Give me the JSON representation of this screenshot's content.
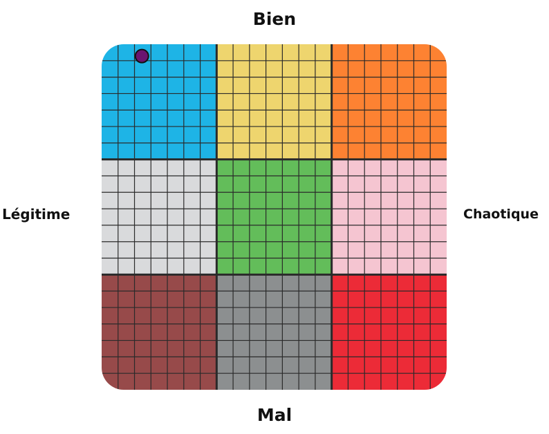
{
  "axes": {
    "top": "Bien",
    "bottom": "Mal",
    "left": "Légitime",
    "right": "Chaotique"
  },
  "grid": {
    "blocks_per_side": 3,
    "subdivisions_per_block": 7,
    "block_colors": [
      [
        "#1eb4e6",
        "#eed56e",
        "#fd8232"
      ],
      [
        "#d9dadc",
        "#63bd5a",
        "#f5c5d1"
      ],
      [
        "#974a4a",
        "#8c8f90",
        "#ec2b37"
      ]
    ],
    "line_color": "#2a2a2a"
  },
  "marker": {
    "color": "#6a1470",
    "col": 2.45,
    "row": 0.72
  }
}
